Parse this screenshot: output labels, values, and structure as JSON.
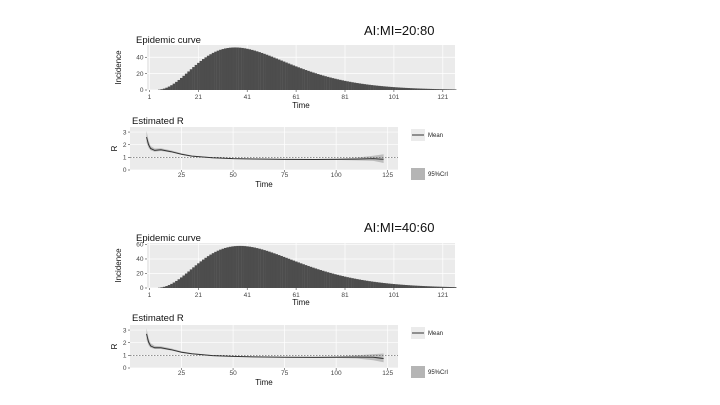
{
  "scenarios": [
    {
      "label": "AI:MI=20:80"
    },
    {
      "label": "AI:MI=40:60"
    }
  ],
  "colors": {
    "panel_bg": "#ebebeb",
    "grid": "#ffffff",
    "bars": "#4d4d4d",
    "mean_line": "#333333",
    "ci_band": "#b5b5b5"
  },
  "chart_data": [
    {
      "type": "bar",
      "title": "Epidemic curve",
      "xlabel": "Time",
      "ylabel": "Incidence",
      "xticks": [
        1,
        21,
        41,
        61,
        81,
        101,
        121
      ],
      "yticks": [
        0,
        20,
        40
      ],
      "xlim": [
        0,
        126
      ],
      "ylim": [
        0,
        55
      ],
      "grid": true,
      "curve_peak_time": 36,
      "curve_peak_value": 52,
      "curve_end_time": 115
    },
    {
      "type": "line",
      "title": "Estimated R",
      "xlabel": "Time",
      "ylabel": "R",
      "xticks": [
        25,
        50,
        75,
        100,
        125
      ],
      "yticks": [
        0,
        1,
        2,
        3
      ],
      "xlim": [
        0,
        130
      ],
      "ylim": [
        0,
        3.4
      ],
      "reference_line": 1,
      "legend": [
        "Mean",
        "95%CrI"
      ],
      "legend_placement": "right",
      "series": [
        {
          "name": "Mean",
          "x": [
            8,
            9,
            10,
            12,
            15,
            20,
            25,
            30,
            40,
            50,
            60,
            75,
            90,
            100,
            110,
            118,
            123
          ],
          "y": [
            2.6,
            2.0,
            1.7,
            1.55,
            1.6,
            1.45,
            1.25,
            1.1,
            0.97,
            0.9,
            0.87,
            0.84,
            0.83,
            0.84,
            0.86,
            0.9,
            0.85
          ]
        }
      ],
      "ci_lower": [
        2.2,
        1.75,
        1.55,
        1.45,
        1.5,
        1.38,
        1.2,
        1.06,
        0.94,
        0.88,
        0.85,
        0.82,
        0.8,
        0.8,
        0.76,
        0.72,
        0.55
      ],
      "ci_upper": [
        3.1,
        2.3,
        1.9,
        1.7,
        1.72,
        1.55,
        1.32,
        1.15,
        1.0,
        0.93,
        0.9,
        0.87,
        0.87,
        0.9,
        0.98,
        1.12,
        1.25
      ]
    },
    {
      "type": "bar",
      "title": "Epidemic curve",
      "xlabel": "Time",
      "ylabel": "Incidence",
      "xticks": [
        1,
        21,
        41,
        61,
        81,
        101,
        121
      ],
      "yticks": [
        0,
        20,
        40,
        60
      ],
      "xlim": [
        0,
        126
      ],
      "ylim": [
        0,
        62
      ],
      "grid": true,
      "curve_peak_time": 38,
      "curve_peak_value": 58,
      "curve_end_time": 115
    },
    {
      "type": "line",
      "title": "Estimated R",
      "xlabel": "Time",
      "ylabel": "R",
      "xticks": [
        25,
        50,
        75,
        100,
        125
      ],
      "yticks": [
        0,
        1,
        2,
        3
      ],
      "xlim": [
        0,
        130
      ],
      "ylim": [
        0,
        3.4
      ],
      "reference_line": 1,
      "legend": [
        "Mean",
        "95%CrI"
      ],
      "legend_placement": "right",
      "series": [
        {
          "name": "Mean",
          "x": [
            8,
            9,
            10,
            12,
            15,
            20,
            25,
            30,
            40,
            50,
            60,
            75,
            90,
            100,
            110,
            118,
            123
          ],
          "y": [
            2.7,
            2.05,
            1.75,
            1.6,
            1.6,
            1.45,
            1.25,
            1.12,
            0.98,
            0.92,
            0.88,
            0.85,
            0.84,
            0.85,
            0.86,
            0.85,
            0.75
          ]
        }
      ],
      "ci_lower": [
        2.25,
        1.8,
        1.6,
        1.5,
        1.5,
        1.38,
        1.2,
        1.08,
        0.95,
        0.89,
        0.86,
        0.83,
        0.81,
        0.8,
        0.75,
        0.62,
        0.45
      ],
      "ci_upper": [
        3.15,
        2.35,
        1.95,
        1.75,
        1.72,
        1.55,
        1.32,
        1.17,
        1.02,
        0.95,
        0.91,
        0.88,
        0.88,
        0.92,
        1.0,
        1.1,
        1.15
      ]
    }
  ]
}
